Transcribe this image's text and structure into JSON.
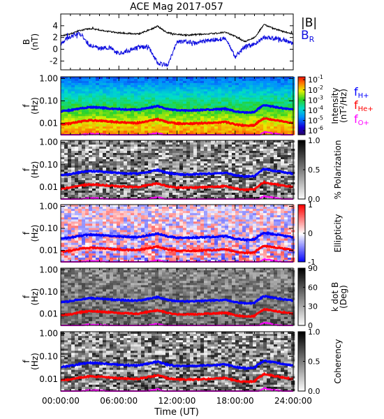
{
  "figure": {
    "title": "ACE Mag 2017-057",
    "xlabel": "Time (UT)",
    "xticks": [
      "00:00:00",
      "06:00:00",
      "12:00:00",
      "18:00:00",
      "24:00:00"
    ],
    "xlim_hours": [
      0,
      24
    ]
  },
  "colors": {
    "b_total": "#000000",
    "b_r": "#1010e0",
    "f_h": "#0000ff",
    "f_he": "#ff0000",
    "f_o": "#ff00ff"
  },
  "chart_data": [
    {
      "type": "line",
      "panel": "field",
      "ylabel": "B",
      "yunit": "(nT)",
      "ylim": [
        -3.5,
        6
      ],
      "yticks": [
        "4",
        "2",
        "0",
        "-2"
      ],
      "ytick_values": [
        4,
        2,
        0,
        -2
      ],
      "x_hours": [
        0,
        1,
        2,
        3,
        4,
        5,
        6,
        7,
        8,
        9,
        10,
        11,
        12,
        13,
        14,
        15,
        16,
        17,
        18,
        19,
        20,
        21,
        22,
        23,
        24
      ],
      "series": [
        {
          "name": "|B|",
          "values": [
            2.3,
            2.6,
            3.2,
            3.5,
            3.3,
            3.0,
            2.8,
            2.7,
            2.6,
            3.2,
            3.9,
            2.8,
            2.5,
            2.4,
            2.5,
            2.6,
            2.7,
            2.9,
            2.2,
            1.3,
            2.0,
            4.2,
            3.5,
            3.0,
            2.6
          ]
        },
        {
          "name": "B",
          "subscript": "R",
          "values": [
            1.0,
            2.2,
            2.7,
            0.6,
            0.1,
            0.3,
            -0.8,
            -0.2,
            0.3,
            0.5,
            -2.3,
            -2.8,
            1.2,
            1.3,
            1.0,
            1.5,
            1.6,
            1.8,
            -1.3,
            0.4,
            0.9,
            2.0,
            1.8,
            1.6,
            1.0
          ]
        }
      ]
    },
    {
      "type": "heatmap",
      "panel": "intensity",
      "ylabel": "f",
      "yunit": "(Hz)",
      "yscale": "log",
      "ylim": [
        0.003,
        1.2
      ],
      "yticks": [
        "1.00",
        "0.10",
        "0.01"
      ],
      "ytick_values": [
        1,
        0.1,
        0.01
      ],
      "colorbar": {
        "label": "Intensity",
        "unit": "(nT²/Hz)",
        "unit_text": [
          "(nT",
          "2",
          "/Hz)"
        ],
        "scale": "log",
        "ticks": [
          "10",
          "10",
          "10",
          "10",
          "10",
          "10"
        ],
        "tick_exponents": [
          "-1",
          "-2",
          "-3",
          "-4",
          "-5",
          "-6"
        ],
        "tick_values": [
          0.1,
          0.01,
          0.001,
          0.0001,
          1e-05,
          1e-06
        ],
        "colormap": "rainbow"
      },
      "legend": [
        {
          "name": "f",
          "subscript": "H+"
        },
        {
          "name": "f",
          "subscript": "He+"
        },
        {
          "name": "f",
          "subscript": "O+"
        }
      ]
    },
    {
      "type": "heatmap",
      "panel": "polarization",
      "ylabel": "f",
      "yunit": "(Hz)",
      "yscale": "log",
      "ylim": [
        0.003,
        1.2
      ],
      "yticks": [
        "1.00",
        "0.10",
        "0.01"
      ],
      "ytick_values": [
        1,
        0.1,
        0.01
      ],
      "colorbar": {
        "label": "% Polarization",
        "ticks": [
          "1.0",
          "0.5",
          "0.0"
        ],
        "tick_values": [
          1.0,
          0.5,
          0.0
        ],
        "range": [
          0,
          1
        ],
        "colormap": "gray"
      }
    },
    {
      "type": "heatmap",
      "panel": "ellipticity",
      "ylabel": "f",
      "yunit": "(Hz)",
      "yscale": "log",
      "ylim": [
        0.003,
        1.2
      ],
      "yticks": [
        "1.00",
        "0.10",
        "0.01"
      ],
      "ytick_values": [
        1,
        0.1,
        0.01
      ],
      "colorbar": {
        "label": "Ellipticity",
        "ticks": [
          "1",
          "0",
          "-1"
        ],
        "tick_values": [
          1,
          0,
          -1
        ],
        "range": [
          -1,
          1
        ],
        "colormap": "blue-white-red"
      }
    },
    {
      "type": "heatmap",
      "panel": "kdotb",
      "ylabel": "f",
      "yunit": "(Hz)",
      "yscale": "log",
      "ylim": [
        0.003,
        1.2
      ],
      "yticks": [
        "1.00",
        "0.10",
        "0.01"
      ],
      "ytick_values": [
        1,
        0.1,
        0.01
      ],
      "colorbar": {
        "label": "k dot B",
        "unit": "(Deg)",
        "ticks": [
          "90",
          "60",
          "30",
          "0"
        ],
        "tick_values": [
          90,
          60,
          30,
          0
        ],
        "range": [
          0,
          90
        ],
        "colormap": "gray"
      }
    },
    {
      "type": "heatmap",
      "panel": "coherency",
      "ylabel": "f",
      "yunit": "(Hz)",
      "yscale": "log",
      "ylim": [
        0.003,
        1.2
      ],
      "yticks": [
        "1.00",
        "0.10",
        "0.01"
      ],
      "ytick_values": [
        1,
        0.1,
        0.01
      ],
      "colorbar": {
        "label": "Coherency",
        "ticks": [
          "1.0",
          "0.5",
          "0.0"
        ],
        "tick_values": [
          1.0,
          0.5,
          0.0
        ],
        "range": [
          0,
          1
        ],
        "colormap": "gray"
      }
    }
  ],
  "gyrofrequency_hz": {
    "x_hours": [
      0,
      1,
      2,
      3,
      4,
      5,
      6,
      7,
      8,
      9,
      10,
      11,
      12,
      13,
      14,
      15,
      16,
      17,
      18,
      19,
      20,
      21,
      22,
      23,
      24
    ],
    "f_h": [
      0.034,
      0.038,
      0.046,
      0.052,
      0.05,
      0.046,
      0.043,
      0.041,
      0.04,
      0.048,
      0.058,
      0.043,
      0.038,
      0.037,
      0.038,
      0.04,
      0.041,
      0.044,
      0.034,
      0.03,
      0.031,
      0.064,
      0.054,
      0.046,
      0.04
    ],
    "f_he": [
      0.0088,
      0.0097,
      0.0118,
      0.0133,
      0.0128,
      0.0118,
      0.011,
      0.0105,
      0.0102,
      0.0123,
      0.0148,
      0.011,
      0.0097,
      0.0095,
      0.0097,
      0.0102,
      0.0105,
      0.0113,
      0.0087,
      0.0077,
      0.008,
      0.0164,
      0.0138,
      0.0118,
      0.0102
    ],
    "f_o": [
      0.0023,
      0.0025,
      0.0029,
      0.0033,
      0.0032,
      0.0029,
      0.0027,
      0.0026,
      0.0025,
      0.003,
      0.0036,
      0.0027,
      0.0024,
      0.0024,
      0.0024,
      0.0025,
      0.0026,
      0.0028,
      0.0022,
      0.002,
      0.002,
      0.004,
      0.0034,
      0.0029,
      0.0025
    ]
  }
}
